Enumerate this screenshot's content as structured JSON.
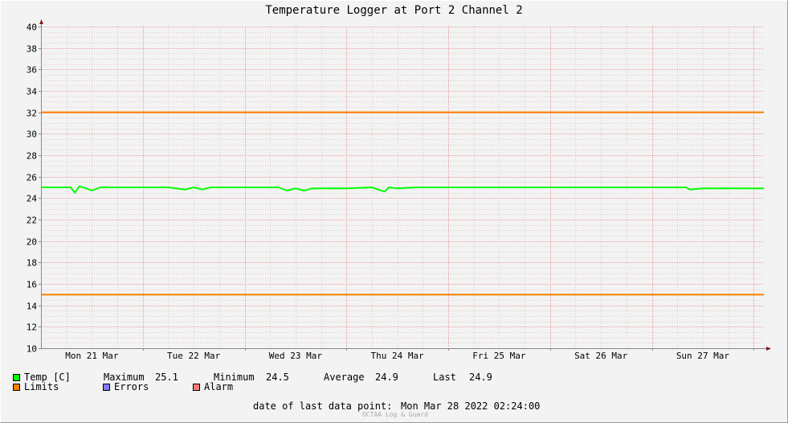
{
  "chart_data": {
    "type": "line",
    "title": "Temperature Logger at Port 2 Channel 2",
    "ylim": [
      10,
      40
    ],
    "y_ticks": [
      10,
      12,
      14,
      16,
      18,
      20,
      22,
      24,
      26,
      28,
      30,
      32,
      34,
      36,
      38,
      40
    ],
    "x_range": [
      "2022-03-21 00:00",
      "2022-03-28 02:24"
    ],
    "x_tick_labels": [
      "Mon 21 Mar",
      "Tue 22 Mar",
      "Wed 23 Mar",
      "Thu 24 Mar",
      "Fri 25 Mar",
      "Sat 26 Mar",
      "Sun 27 Mar"
    ],
    "grid": true,
    "series": [
      {
        "name": "Temp [C]",
        "color": "#00ff00",
        "x": [
          "2022-03-21 00:00",
          "2022-03-21 07:00",
          "2022-03-21 08:00",
          "2022-03-21 09:00",
          "2022-03-21 10:00",
          "2022-03-21 12:00",
          "2022-03-21 14:00",
          "2022-03-21 16:00",
          "2022-03-22 00:00",
          "2022-03-22 06:00",
          "2022-03-22 10:00",
          "2022-03-22 12:00",
          "2022-03-22 14:00",
          "2022-03-22 16:00",
          "2022-03-22 18:00",
          "2022-03-23 00:00",
          "2022-03-23 08:00",
          "2022-03-23 10:00",
          "2022-03-23 12:00",
          "2022-03-23 14:00",
          "2022-03-23 16:00",
          "2022-03-23 18:00",
          "2022-03-24 00:00",
          "2022-03-24 06:00",
          "2022-03-24 09:00",
          "2022-03-24 10:00",
          "2022-03-24 12:00",
          "2022-03-24 16:00",
          "2022-03-25 00:00",
          "2022-03-25 12:00",
          "2022-03-26 00:00",
          "2022-03-26 12:00",
          "2022-03-27 00:00",
          "2022-03-27 08:00",
          "2022-03-27 09:00",
          "2022-03-27 12:00",
          "2022-03-27 16:00",
          "2022-03-28 00:00",
          "2022-03-28 02:24"
        ],
        "y": [
          25.0,
          25.0,
          24.5,
          25.1,
          25.0,
          24.7,
          25.0,
          25.0,
          25.0,
          25.0,
          24.8,
          25.0,
          24.8,
          25.0,
          25.0,
          25.0,
          25.0,
          24.7,
          24.9,
          24.7,
          24.9,
          24.9,
          24.9,
          25.0,
          24.6,
          25.0,
          24.9,
          25.0,
          25.0,
          25.0,
          25.0,
          25.0,
          25.0,
          25.0,
          24.8,
          24.9,
          24.9,
          24.9,
          24.9
        ]
      },
      {
        "name": "Limits",
        "color": "#ff7f00",
        "role": "upper",
        "value": 32
      },
      {
        "name": "Limits",
        "color": "#ff7f00",
        "role": "lower",
        "value": 15
      }
    ],
    "stats": {
      "maximum_label": "Maximum",
      "maximum": "25.1",
      "minimum_label": "Minimum",
      "minimum": "24.5",
      "average_label": "Average",
      "average": "24.9",
      "last_label": "Last",
      "last": "24.9"
    }
  },
  "legend": {
    "temp": {
      "label": "Temp [C]",
      "color": "#00ff00"
    },
    "limits": {
      "label": "Limits",
      "color": "#ff7f00"
    },
    "errors": {
      "label": "Errors",
      "color": "#7f7fff"
    },
    "alarm": {
      "label": "Alarm",
      "color": "#ff7f7f"
    }
  },
  "footer": {
    "last_data_label": "date of last data point:",
    "last_data_value": "Mon Mar 28 2022 02:24:00",
    "credit": "OCTAA Log & Guard"
  }
}
